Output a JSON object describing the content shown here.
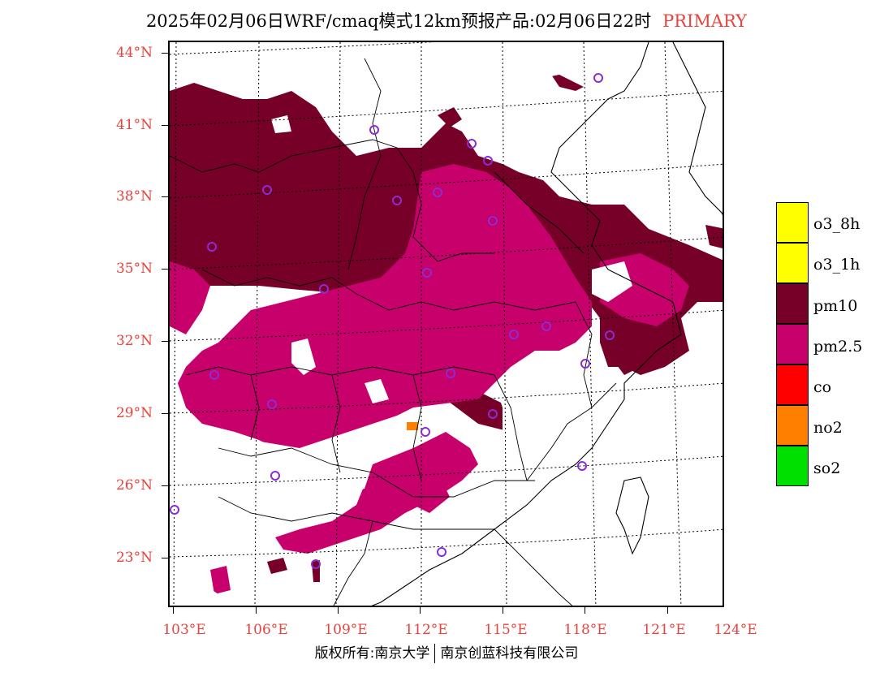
{
  "header": {
    "title": "2025年02月06日WRF/cmaq模式12km预报产品:02月06日22时",
    "tag": "PRIMARY",
    "tag_color": "#e8433c"
  },
  "map": {
    "lat_labels": [
      "44°N",
      "41°N",
      "38°N",
      "35°N",
      "32°N",
      "29°N",
      "26°N",
      "23°N"
    ],
    "lon_labels": [
      "103°E",
      "106°E",
      "109°E",
      "112°E",
      "115°E",
      "118°E",
      "121°E",
      "124°E"
    ],
    "colors": {
      "pm10": "#770029",
      "pm25": "#c8006c",
      "no2": "#ff7f00",
      "station": "#8b2bd6"
    }
  },
  "legend": {
    "items": [
      {
        "label": "o3_8h",
        "color": "#ffff00"
      },
      {
        "label": "o3_1h",
        "color": "#ffff00"
      },
      {
        "label": "pm10",
        "color": "#770029"
      },
      {
        "label": "pm2.5",
        "color": "#c8006c"
      },
      {
        "label": "co",
        "color": "#ff0000"
      },
      {
        "label": "no2",
        "color": "#ff7f00"
      },
      {
        "label": "so2",
        "color": "#00e000"
      }
    ]
  },
  "footer": {
    "left": "版权所有:南京大学",
    "right": "南京创蓝科技有限公司"
  }
}
